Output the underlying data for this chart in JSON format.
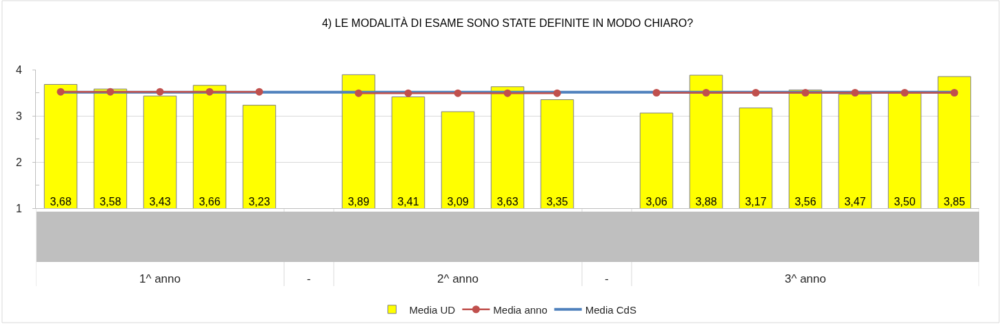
{
  "chart_data": {
    "type": "bar",
    "title": "4) LE MODALITÀ DI ESAME SONO STATE DEFINITE IN MODO CHIARO?",
    "categories": [
      null,
      null,
      "1^ anno",
      null,
      null,
      "-",
      null,
      null,
      "2^ anno",
      null,
      null,
      "-",
      null,
      null,
      null,
      "3^ anno",
      null,
      null,
      null
    ],
    "series": [
      {
        "name": "Media UD",
        "color": "#ffff00",
        "values": [
          3.68,
          3.58,
          3.43,
          3.66,
          3.23,
          null,
          3.89,
          3.41,
          3.09,
          3.63,
          3.35,
          null,
          3.06,
          3.88,
          3.17,
          3.56,
          3.47,
          3.5,
          3.85
        ],
        "value_labels": [
          "3,68",
          "3,58",
          "3,43",
          "3,66",
          "3,23",
          null,
          "3,89",
          "3,41",
          "3,09",
          "3,63",
          "3,35",
          null,
          "3,06",
          "3,88",
          "3,17",
          "3,56",
          "3,47",
          "3,50",
          "3,85"
        ]
      },
      {
        "name": "Media anno",
        "type": "line",
        "color": "#c0504d",
        "marker": "circle",
        "values": [
          3.52,
          3.52,
          3.52,
          3.52,
          3.52,
          null,
          3.49,
          3.49,
          3.49,
          3.49,
          3.49,
          null,
          3.5,
          3.5,
          3.5,
          3.5,
          3.5,
          3.5,
          3.5
        ]
      },
      {
        "name": "Media CdS",
        "type": "line",
        "color": "#4f81bd",
        "marker": "none",
        "values": [
          3.51,
          3.51,
          3.51,
          3.51,
          3.51,
          3.51,
          3.51,
          3.51,
          3.51,
          3.51,
          3.51,
          3.51,
          3.51,
          3.51,
          3.51,
          3.51,
          3.51,
          3.51,
          3.51
        ]
      }
    ],
    "ylim": [
      1,
      4
    ],
    "yticks": [
      1,
      {
        "value": 1.5,
        "label": null
      },
      2,
      {
        "value": 2.5,
        "label": null
      },
      3,
      {
        "value": 3.5,
        "label": null
      },
      4
    ],
    "grid": "y",
    "legend": "bottom"
  }
}
